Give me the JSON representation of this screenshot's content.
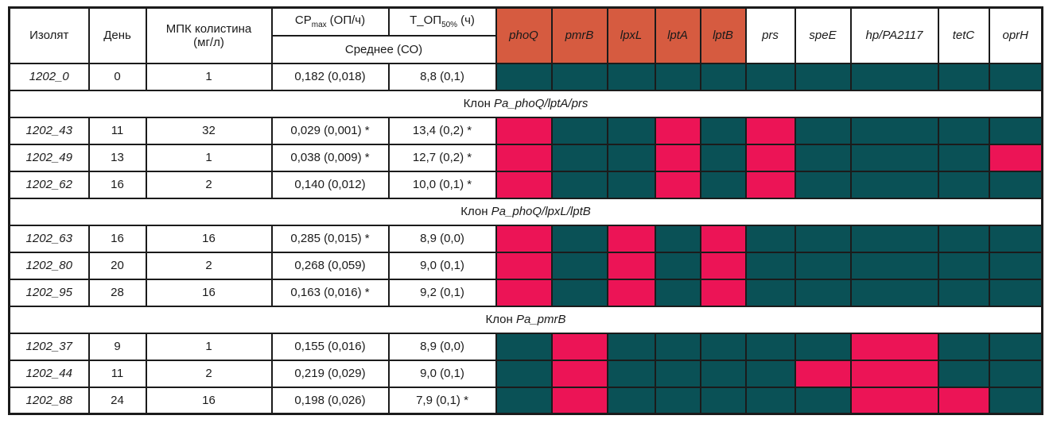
{
  "table": {
    "columns": {
      "isolate": "Изолят",
      "day": "День",
      "mic_line1": "МПК колистина",
      "mic_line2": "(мг/л)",
      "cp": {
        "base": "СР",
        "sub": "max",
        "unit": "(ОП/ч)"
      },
      "top": {
        "base": "Т_ОП",
        "sub": "50%",
        "unit": "(ч)"
      },
      "mean": "Среднее (СО)"
    },
    "genes": [
      "phoQ",
      "pmrB",
      "lpxL",
      "lptA",
      "lptB",
      "prs",
      "speE",
      "hp/PA2117",
      "tetC",
      "oprH"
    ],
    "colors": {
      "mutated_cell": "#ec1456",
      "wildtype_cell": "#0a5156",
      "highlighted_gene_header": "#d65b40",
      "plain_gene_header": "#ffffff",
      "border": "#1b1b1b"
    },
    "rows": [
      {
        "type": "data",
        "isolate": "1202_0",
        "day": "0",
        "mic": "1",
        "cp": "0,182 (0,018)",
        "t_op": "8,8 (0,1)",
        "mutations": [
          0,
          0,
          0,
          0,
          0,
          0,
          0,
          0,
          0,
          0
        ]
      },
      {
        "type": "section",
        "prefix": "Клон ",
        "clone": "Pa_phoQ/lptA/prs"
      },
      {
        "type": "data",
        "isolate": "1202_43",
        "day": "11",
        "mic": "32",
        "cp": "0,029 (0,001) *",
        "t_op": "13,4 (0,2) *",
        "mutations": [
          1,
          0,
          0,
          1,
          0,
          1,
          0,
          0,
          0,
          0
        ]
      },
      {
        "type": "data",
        "isolate": "1202_49",
        "day": "13",
        "mic": "1",
        "cp": "0,038 (0,009) *",
        "t_op": "12,7 (0,2) *",
        "mutations": [
          1,
          0,
          0,
          1,
          0,
          1,
          0,
          0,
          0,
          1
        ]
      },
      {
        "type": "data",
        "isolate": "1202_62",
        "day": "16",
        "mic": "2",
        "cp": "0,140 (0,012)",
        "t_op": "10,0 (0,1) *",
        "mutations": [
          1,
          0,
          0,
          1,
          0,
          1,
          0,
          0,
          0,
          0
        ]
      },
      {
        "type": "section",
        "prefix": "Клон ",
        "clone": "Pa_phoQ/lpxL/lptB"
      },
      {
        "type": "data",
        "isolate": "1202_63",
        "day": "16",
        "mic": "16",
        "cp": "0,285 (0,015) *",
        "t_op": "8,9 (0,0)",
        "mutations": [
          1,
          0,
          1,
          0,
          1,
          0,
          0,
          0,
          0,
          0
        ]
      },
      {
        "type": "data",
        "isolate": "1202_80",
        "day": "20",
        "mic": "2",
        "cp": "0,268 (0,059)",
        "t_op": "9,0 (0,1)",
        "mutations": [
          1,
          0,
          1,
          0,
          1,
          0,
          0,
          0,
          0,
          0
        ]
      },
      {
        "type": "data",
        "isolate": "1202_95",
        "day": "28",
        "mic": "16",
        "cp": "0,163 (0,016) *",
        "t_op": "9,2 (0,1)",
        "mutations": [
          1,
          0,
          1,
          0,
          1,
          0,
          0,
          0,
          0,
          0
        ]
      },
      {
        "type": "section",
        "prefix": "Клон ",
        "clone": "Pa_pmrB"
      },
      {
        "type": "data",
        "isolate": "1202_37",
        "day": "9",
        "mic": "1",
        "cp": "0,155 (0,016)",
        "t_op": "8,9 (0,0)",
        "mutations": [
          0,
          1,
          0,
          0,
          0,
          0,
          0,
          1,
          0,
          0
        ]
      },
      {
        "type": "data",
        "isolate": "1202_44",
        "day": "11",
        "mic": "2",
        "cp": "0,219 (0,029)",
        "t_op": "9,0 (0,1)",
        "mutations": [
          0,
          1,
          0,
          0,
          0,
          0,
          1,
          1,
          0,
          0
        ]
      },
      {
        "type": "data",
        "isolate": "1202_88",
        "day": "24",
        "mic": "16",
        "cp": "0,198 (0,026)",
        "t_op": "7,9 (0,1) *",
        "mutations": [
          0,
          1,
          0,
          0,
          0,
          0,
          0,
          1,
          1,
          0
        ]
      }
    ]
  }
}
